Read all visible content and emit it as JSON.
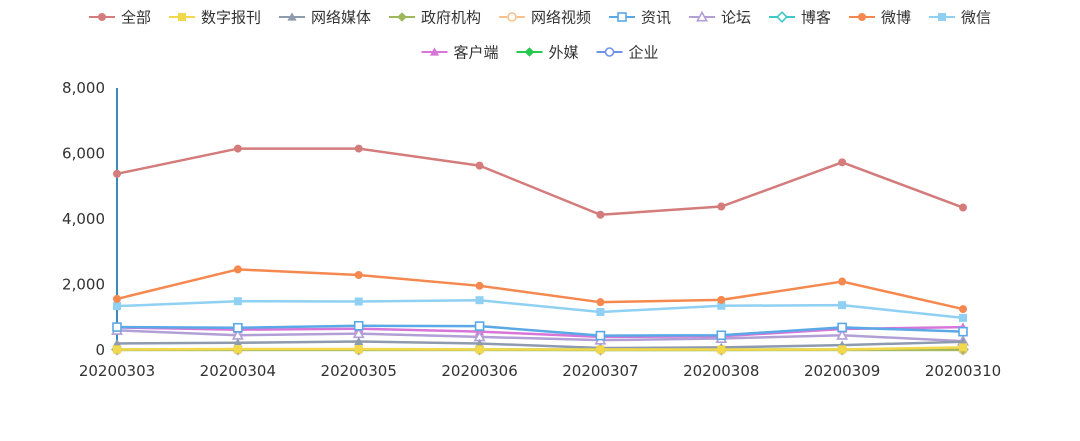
{
  "chart_data": {
    "type": "line",
    "categories": [
      "20200303",
      "20200304",
      "20200305",
      "20200306",
      "20200307",
      "20200308",
      "20200309",
      "20200310"
    ],
    "ylim": [
      0,
      8000
    ],
    "yticks": [
      0,
      2000,
      4000,
      6000,
      8000
    ],
    "ytick_labels": [
      "0",
      "2,000",
      "4,000",
      "6,000",
      "8,000"
    ],
    "grid": false,
    "legend_position": "top-center",
    "series": [
      {
        "name": "全部",
        "marker": "circle",
        "color": "#d47b7b",
        "values": [
          5380,
          6150,
          6150,
          5630,
          4130,
          4380,
          5730,
          4350
        ]
      },
      {
        "name": "数字报刊",
        "marker": "square",
        "color": "#f2d94c",
        "values": [
          20,
          30,
          30,
          20,
          15,
          15,
          20,
          80
        ]
      },
      {
        "name": "网络媒体",
        "marker": "triangle",
        "color": "#8e9aad",
        "values": [
          200,
          220,
          260,
          200,
          60,
          80,
          150,
          250
        ]
      },
      {
        "name": "政府机构",
        "marker": "diamond",
        "color": "#9db85b",
        "values": [
          10,
          10,
          10,
          10,
          5,
          5,
          10,
          10
        ]
      },
      {
        "name": "网络视频",
        "marker": "emptyCircle",
        "color": "#f8c38e",
        "values": [
          5,
          5,
          5,
          5,
          5,
          5,
          5,
          5
        ]
      },
      {
        "name": "资讯",
        "marker": "emptySquare",
        "color": "#5aa8e6",
        "values": [
          700,
          680,
          740,
          730,
          440,
          450,
          690,
          560
        ]
      },
      {
        "name": "论坛",
        "marker": "emptyTriangle",
        "color": "#b29fd6",
        "values": [
          600,
          450,
          500,
          400,
          300,
          350,
          450,
          270
        ]
      },
      {
        "name": "博客",
        "marker": "emptyDiamond",
        "color": "#40c8c8",
        "values": [
          15,
          15,
          15,
          15,
          10,
          10,
          15,
          15
        ]
      },
      {
        "name": "微博",
        "marker": "circle",
        "color": "#f5884e",
        "values": [
          1560,
          2460,
          2290,
          1960,
          1460,
          1530,
          2090,
          1250
        ]
      },
      {
        "name": "微信",
        "marker": "square",
        "color": "#8fd0f3",
        "values": [
          1340,
          1490,
          1480,
          1520,
          1160,
          1350,
          1370,
          980
        ]
      },
      {
        "name": "客户端",
        "marker": "triangle",
        "color": "#d776d8",
        "values": [
          690,
          620,
          650,
          560,
          400,
          420,
          640,
          700
        ]
      },
      {
        "name": "外媒",
        "marker": "diamond",
        "color": "#27c84e",
        "values": [
          5,
          5,
          5,
          5,
          5,
          5,
          5,
          5
        ]
      },
      {
        "name": "企业",
        "marker": "emptyCircle",
        "color": "#6f93e8",
        "values": [
          10,
          10,
          10,
          10,
          10,
          10,
          10,
          10
        ]
      }
    ]
  }
}
